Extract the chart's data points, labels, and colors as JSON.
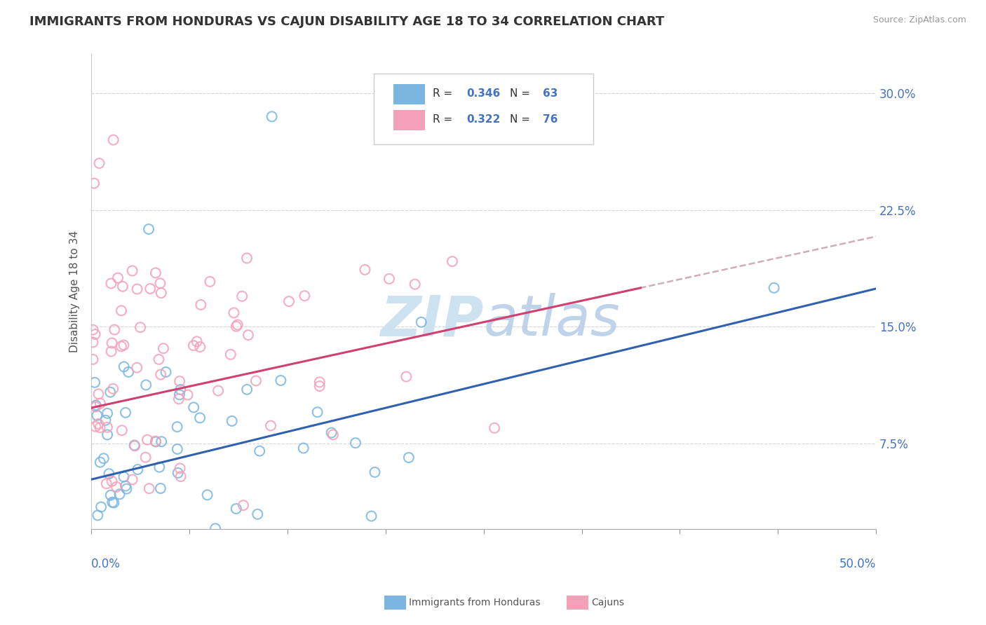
{
  "title": "IMMIGRANTS FROM HONDURAS VS CAJUN DISABILITY AGE 18 TO 34 CORRELATION CHART",
  "source": "Source: ZipAtlas.com",
  "ylabel": "Disability Age 18 to 34",
  "xmin": 0.0,
  "xmax": 0.5,
  "ymin": 0.02,
  "ymax": 0.325,
  "yticks": [
    0.075,
    0.15,
    0.225,
    0.3
  ],
  "ytick_labels": [
    "7.5%",
    "15.0%",
    "22.5%",
    "30.0%"
  ],
  "series1_name": "Immigrants from Honduras",
  "series2_name": "Cajuns",
  "series1_color": "#7ab6e0",
  "series2_color": "#f4a0b8",
  "trendline1_color": "#3060b0",
  "trendline2_color": "#d04070",
  "trendline_ext_color": "#c8a0a8",
  "title_color": "#333333",
  "title_fontsize": 13,
  "axis_label_color": "#4472c4",
  "watermark_color": "#c8dff0",
  "R1": 0.346,
  "N1": 63,
  "R2": 0.322,
  "N2": 76,
  "blue_intercept": 0.052,
  "blue_slope": 0.245,
  "pink_intercept": 0.098,
  "pink_slope": 0.22
}
